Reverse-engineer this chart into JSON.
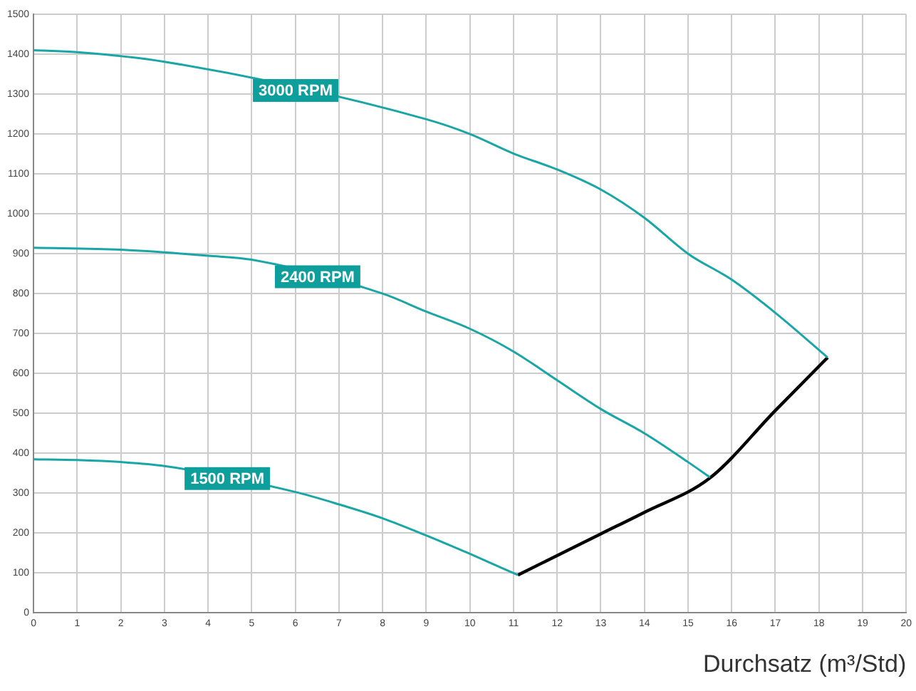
{
  "chart_data": {
    "type": "line",
    "xlabel": "Durchsatz (m³/Std)",
    "xlim": [
      0,
      20
    ],
    "xticks": [
      0,
      1,
      2,
      3,
      4,
      5,
      6,
      7,
      8,
      9,
      10,
      11,
      12,
      13,
      14,
      15,
      16,
      17,
      18,
      19,
      20
    ],
    "ylim": [
      0,
      1500
    ],
    "yticks": [
      0,
      100,
      200,
      300,
      400,
      500,
      600,
      700,
      800,
      900,
      1000,
      1100,
      1200,
      1300,
      1400,
      1500
    ],
    "grid": true,
    "legend": false,
    "marker": "none",
    "line_style": "solid",
    "series": [
      {
        "name": "3000 RPM",
        "color": "#1aa6a6",
        "x": [
          0,
          1,
          3,
          9,
          10,
          11,
          12,
          13,
          14,
          15,
          16,
          17,
          18.2
        ],
        "values": [
          1410,
          1405,
          1381,
          1237,
          1200,
          1151,
          1111,
          1061,
          990,
          900,
          835,
          752,
          640
        ]
      },
      {
        "name": "2400 RPM",
        "color": "#1aa6a6",
        "x": [
          0,
          2,
          4,
          5,
          8,
          9,
          10,
          11,
          12,
          13,
          14,
          15,
          15.5
        ],
        "values": [
          915,
          910,
          895,
          885,
          800,
          755,
          712,
          655,
          583,
          511,
          450,
          378,
          340
        ]
      },
      {
        "name": "1500 RPM",
        "color": "#1aa6a6",
        "x": [
          0,
          1,
          2,
          3,
          6,
          7,
          8,
          9,
          10,
          11.1
        ],
        "values": [
          385,
          383,
          378,
          368,
          303,
          272,
          237,
          194,
          148,
          95
        ]
      },
      {
        "color": "#000000",
        "x": [
          11.1,
          13,
          14,
          15.5,
          17,
          18.2
        ],
        "values": [
          95,
          198,
          252,
          338,
          507,
          640
        ]
      }
    ]
  }
}
